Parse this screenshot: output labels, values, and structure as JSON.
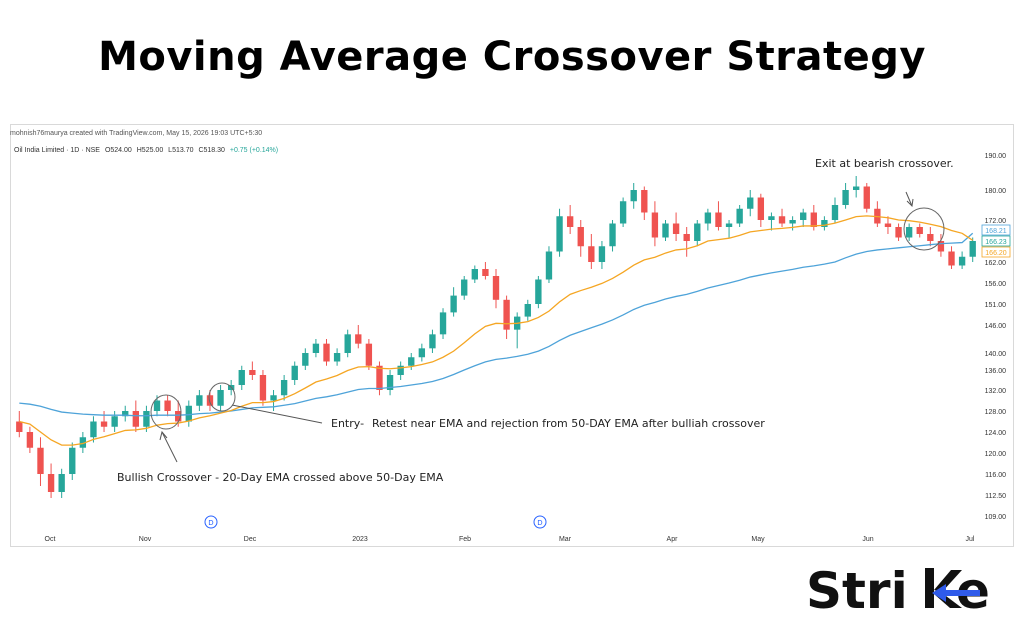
{
  "title": "Moving Average Crossover Strategy",
  "credit": "mohnish76maurya created with TradingView.com, May 15, 2026 19:03 UTC+5:30",
  "legend": {
    "symbol": "Oil India Limited · 1D · NSE",
    "open": "O524.00",
    "high": "H525.00",
    "low": "L513.70",
    "close": "C518.30",
    "change": "+0.75 (+0.14%)"
  },
  "annotations": {
    "exit": "Exit at bearish crossover.",
    "entry_label": "Entry-",
    "entry_text": "Retest near EMA and rejection from 50-DAY EMA after bulliah crossover",
    "bullish": "Bullish Crossover - 20-Day EMA crossed above 50-Day EMA"
  },
  "event_marker": "D",
  "colors": {
    "up": "#26a69a",
    "down": "#ef5350",
    "ema20": "#f5a623",
    "ema50": "#4ea3d9",
    "price_tag_bg": "#fff7e6"
  },
  "brand": {
    "prefix": "Stri",
    "suffix": "e"
  },
  "chart_data": {
    "type": "line",
    "title": "",
    "xlabel": "",
    "ylabel": "",
    "x_ticks": [
      "Oct",
      "Nov",
      "Dec",
      "2023",
      "Feb",
      "Mar",
      "Apr",
      "May",
      "Jun",
      "Jul"
    ],
    "y_ticks": [
      109.0,
      112.5,
      116.0,
      120.0,
      124.0,
      128.0,
      132.0,
      136.0,
      140.0,
      146.0,
      151.0,
      156.0,
      162.0,
      166.0,
      172.0,
      180.0,
      190.0
    ],
    "price_tags": [
      {
        "series": "50-Day EMA",
        "value": "168.21"
      },
      {
        "series": "close",
        "value": "166.23"
      },
      {
        "series": "20-Day EMA",
        "value": "166.20"
      }
    ],
    "series": [
      {
        "kind": "candlestick",
        "points": [
          [
            126,
            128,
            123,
            124
          ],
          [
            124,
            125,
            120,
            121
          ],
          [
            121,
            123,
            114,
            116
          ],
          [
            116,
            118,
            112,
            113
          ],
          [
            113,
            117,
            112,
            116
          ],
          [
            116,
            122,
            115,
            121
          ],
          [
            121,
            124,
            120,
            123
          ],
          [
            123,
            127,
            122,
            126
          ],
          [
            126,
            128,
            124,
            125
          ],
          [
            125,
            128,
            124,
            127
          ],
          [
            127,
            129,
            126,
            128
          ],
          [
            128,
            130,
            124,
            125
          ],
          [
            125,
            129,
            124,
            128
          ],
          [
            128,
            131,
            127,
            130
          ],
          [
            130,
            131,
            127,
            128
          ],
          [
            128,
            130,
            125,
            126
          ],
          [
            126,
            130,
            125,
            129
          ],
          [
            129,
            132,
            128,
            131
          ],
          [
            131,
            132,
            128,
            129
          ],
          [
            129,
            133,
            128,
            132
          ],
          [
            132,
            134,
            131,
            133
          ],
          [
            133,
            137,
            132,
            136
          ],
          [
            136,
            138,
            134,
            135
          ],
          [
            135,
            136,
            129,
            130
          ],
          [
            130,
            132,
            128,
            131
          ],
          [
            131,
            135,
            130,
            134
          ],
          [
            134,
            138,
            133,
            137
          ],
          [
            137,
            141,
            136,
            140
          ],
          [
            140,
            143,
            139,
            142
          ],
          [
            142,
            143,
            137,
            138
          ],
          [
            138,
            141,
            137,
            140
          ],
          [
            140,
            145,
            139,
            144
          ],
          [
            144,
            146,
            141,
            142
          ],
          [
            142,
            143,
            136,
            137
          ],
          [
            137,
            138,
            131,
            132
          ],
          [
            132,
            136,
            131,
            135
          ],
          [
            135,
            138,
            134,
            137
          ],
          [
            137,
            140,
            136,
            139
          ],
          [
            139,
            142,
            138,
            141
          ],
          [
            141,
            145,
            140,
            144
          ],
          [
            144,
            150,
            143,
            149
          ],
          [
            149,
            155,
            148,
            153
          ],
          [
            153,
            158,
            152,
            157
          ],
          [
            157,
            161,
            156,
            160
          ],
          [
            160,
            162,
            157,
            158
          ],
          [
            158,
            160,
            150,
            152
          ],
          [
            152,
            153,
            143,
            145
          ],
          [
            145,
            149,
            141,
            148
          ],
          [
            148,
            152,
            147,
            151
          ],
          [
            151,
            158,
            150,
            157
          ],
          [
            157,
            165,
            156,
            164
          ],
          [
            164,
            175,
            163,
            173
          ],
          [
            173,
            176,
            168,
            170
          ],
          [
            170,
            172,
            163,
            165
          ],
          [
            165,
            168,
            160,
            162
          ],
          [
            162,
            166,
            160,
            165
          ],
          [
            165,
            172,
            164,
            171
          ],
          [
            171,
            178,
            170,
            177
          ],
          [
            177,
            182,
            175,
            180
          ],
          [
            180,
            181,
            172,
            174
          ],
          [
            174,
            177,
            165,
            167
          ],
          [
            167,
            172,
            166,
            171
          ],
          [
            171,
            174,
            166,
            168
          ],
          [
            168,
            170,
            163,
            166
          ],
          [
            166,
            172,
            165,
            171
          ],
          [
            171,
            175,
            169,
            174
          ],
          [
            174,
            177,
            169,
            170
          ],
          [
            170,
            172,
            167,
            171
          ],
          [
            171,
            176,
            170,
            175
          ],
          [
            175,
            180,
            173,
            178
          ],
          [
            178,
            179,
            170,
            172
          ],
          [
            172,
            174,
            169,
            173
          ],
          [
            173,
            175,
            170,
            171
          ],
          [
            171,
            173,
            169,
            172
          ],
          [
            172,
            175,
            170,
            174
          ],
          [
            174,
            176,
            169,
            170
          ],
          [
            170,
            173,
            169,
            172
          ],
          [
            172,
            178,
            171,
            176
          ],
          [
            176,
            182,
            175,
            180
          ],
          [
            180,
            184,
            178,
            181
          ],
          [
            181,
            182,
            174,
            175
          ],
          [
            175,
            177,
            170,
            171
          ],
          [
            171,
            173,
            168,
            170
          ],
          [
            170,
            171,
            166,
            167
          ],
          [
            167,
            171,
            166,
            170
          ],
          [
            170,
            171,
            167,
            168
          ],
          [
            168,
            170,
            165,
            166
          ],
          [
            166,
            168,
            163,
            164
          ],
          [
            164,
            165,
            160,
            161
          ],
          [
            161,
            164,
            160,
            163
          ],
          [
            163,
            167,
            162,
            166
          ]
        ]
      },
      {
        "name": "20-Day EMA",
        "values": [
          126,
          125.5,
          124,
          122.5,
          121.5,
          121.5,
          121.8,
          122.6,
          123.1,
          123.7,
          124.3,
          124.4,
          124.7,
          125.3,
          125.6,
          125.7,
          126.1,
          126.7,
          127.1,
          127.6,
          128.1,
          128.9,
          129.6,
          129.6,
          129.8,
          130.4,
          131.3,
          132.4,
          133.6,
          134.2,
          134.9,
          135.9,
          136.7,
          136.8,
          136.4,
          136.3,
          136.5,
          136.8,
          137.3,
          137.9,
          139.0,
          140.4,
          142.2,
          144.1,
          145.7,
          146.4,
          146.3,
          146.4,
          146.8,
          147.8,
          149.3,
          151.5,
          153.3,
          154.2,
          155.0,
          155.9,
          157.3,
          159.1,
          161.1,
          162.4,
          162.9,
          163.7,
          164.3,
          164.5,
          165.1,
          166.0,
          166.4,
          166.8,
          167.6,
          168.6,
          169.0,
          169.4,
          169.6,
          169.9,
          170.3,
          170.3,
          170.5,
          171.1,
          172.0,
          172.9,
          173.1,
          172.9,
          172.6,
          172.0,
          171.8,
          171.4,
          170.8,
          170.1,
          169.0,
          168.2,
          166.2
        ]
      },
      {
        "name": "50-Day EMA",
        "values": [
          129.5,
          129.3,
          128.9,
          128.3,
          127.8,
          127.6,
          127.4,
          127.3,
          127.2,
          127.2,
          127.2,
          127.1,
          127.1,
          127.2,
          127.2,
          127.2,
          127.3,
          127.5,
          127.6,
          127.8,
          128.0,
          128.3,
          128.6,
          128.7,
          128.8,
          129.1,
          129.4,
          129.9,
          130.4,
          130.7,
          131.1,
          131.6,
          132.1,
          132.3,
          132.3,
          132.5,
          132.7,
          133.0,
          133.3,
          133.7,
          134.3,
          135.1,
          136.0,
          137.0,
          137.9,
          138.5,
          138.8,
          139.2,
          139.7,
          140.4,
          141.4,
          142.7,
          143.8,
          144.6,
          145.4,
          146.2,
          147.2,
          148.4,
          149.7,
          150.7,
          151.4,
          152.2,
          152.8,
          153.3,
          154.0,
          154.8,
          155.4,
          156.0,
          156.8,
          157.7,
          158.3,
          158.9,
          159.4,
          159.9,
          160.5,
          160.9,
          161.4,
          162.0,
          162.8,
          163.5,
          164.0,
          164.3,
          164.5,
          164.7,
          164.9,
          165.1,
          165.3,
          165.5,
          165.6,
          165.7,
          168.2
        ]
      }
    ]
  }
}
